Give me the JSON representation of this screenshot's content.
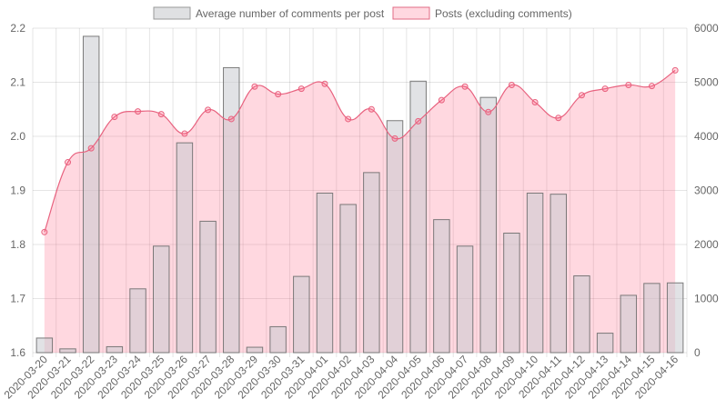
{
  "chart_data": {
    "type": "bar",
    "categories": [
      "2020-03-20",
      "2020-03-21",
      "2020-03-22",
      "2020-03-23",
      "2020-03-24",
      "2020-03-25",
      "2020-03-26",
      "2020-03-27",
      "2020-03-28",
      "2020-03-29",
      "2020-03-30",
      "2020-03-31",
      "2020-04-01",
      "2020-04-02",
      "2020-04-03",
      "2020-04-04",
      "2020-04-05",
      "2020-04-06",
      "2020-04-07",
      "2020-04-08",
      "2020-04-09",
      "2020-04-10",
      "2020-04-11",
      "2020-04-12",
      "2020-04-13",
      "2020-04-14",
      "2020-04-15",
      "2020-04-16"
    ],
    "series": [
      {
        "name": "Average number of comments per post",
        "type": "bar",
        "axis": "left",
        "color": "#c9cbcf",
        "values": [
          1.627,
          1.607,
          2.185,
          1.611,
          1.718,
          1.797,
          1.988,
          1.843,
          2.127,
          1.61,
          1.648,
          1.741,
          1.895,
          1.874,
          1.933,
          2.029,
          2.102,
          1.846,
          1.797,
          2.072,
          1.821,
          1.895,
          1.893,
          1.742,
          1.636,
          1.706,
          1.728,
          1.729
        ]
      },
      {
        "name": "Posts (excluding comments)",
        "type": "area",
        "axis": "right",
        "color": "#ff6384",
        "values": [
          2230,
          3520,
          3780,
          4360,
          4460,
          4410,
          4050,
          4490,
          4320,
          4920,
          4780,
          4880,
          4970,
          4320,
          4500,
          3960,
          4280,
          4670,
          4920,
          4450,
          4950,
          4630,
          4340,
          4760,
          4880,
          4950,
          4930,
          5220
        ]
      }
    ],
    "yleft": {
      "min": 1.6,
      "max": 2.2,
      "ticks": [
        "1.6",
        "1.7",
        "1.8",
        "1.9",
        "2.0",
        "2.1",
        "2.2"
      ]
    },
    "yright": {
      "min": 0,
      "max": 6000,
      "ticks": [
        "0",
        "1000",
        "2000",
        "3000",
        "4000",
        "5000",
        "6000"
      ]
    },
    "grid": true,
    "legend_position": "top"
  }
}
